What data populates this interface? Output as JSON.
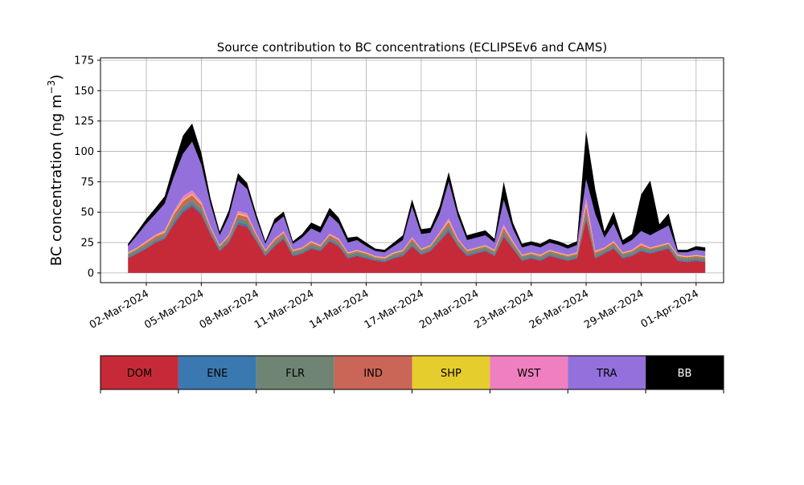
{
  "chart_data": {
    "type": "area",
    "stacked": true,
    "title": "Source contribution to BC concentrations (ECLIPSEv6 and CAMS)",
    "ylabel_prefix": "BC concentration (ng m",
    "ylabel_exp": "−3",
    "ylabel_suffix": ")",
    "ylim": [
      -8,
      177
    ],
    "yticks": [
      0,
      25,
      50,
      75,
      100,
      125,
      150,
      175
    ],
    "xlim": [
      "2024-02-28T12:00",
      "2024-04-02T12:00"
    ],
    "xticks": [
      "02-Mar-2024",
      "05-Mar-2024",
      "08-Mar-2024",
      "11-Mar-2024",
      "14-Mar-2024",
      "17-Mar-2024",
      "20-Mar-2024",
      "23-Mar-2024",
      "26-Mar-2024",
      "29-Mar-2024",
      "01-Apr-2024"
    ],
    "grid": true,
    "x": [
      "2024-03-01T00:00",
      "2024-03-01T12:00",
      "2024-03-02T00:00",
      "2024-03-02T12:00",
      "2024-03-03T00:00",
      "2024-03-03T12:00",
      "2024-03-04T00:00",
      "2024-03-04T12:00",
      "2024-03-05T00:00",
      "2024-03-05T12:00",
      "2024-03-06T00:00",
      "2024-03-06T12:00",
      "2024-03-07T00:00",
      "2024-03-07T12:00",
      "2024-03-08T00:00",
      "2024-03-08T12:00",
      "2024-03-09T00:00",
      "2024-03-09T12:00",
      "2024-03-10T00:00",
      "2024-03-10T12:00",
      "2024-03-11T00:00",
      "2024-03-11T12:00",
      "2024-03-12T00:00",
      "2024-03-12T12:00",
      "2024-03-13T00:00",
      "2024-03-13T12:00",
      "2024-03-14T00:00",
      "2024-03-14T12:00",
      "2024-03-15T00:00",
      "2024-03-15T12:00",
      "2024-03-16T00:00",
      "2024-03-16T12:00",
      "2024-03-17T00:00",
      "2024-03-17T12:00",
      "2024-03-18T00:00",
      "2024-03-18T12:00",
      "2024-03-19T00:00",
      "2024-03-19T12:00",
      "2024-03-20T00:00",
      "2024-03-20T12:00",
      "2024-03-21T00:00",
      "2024-03-21T12:00",
      "2024-03-22T00:00",
      "2024-03-22T12:00",
      "2024-03-23T00:00",
      "2024-03-23T12:00",
      "2024-03-24T00:00",
      "2024-03-24T12:00",
      "2024-03-25T00:00",
      "2024-03-25T12:00",
      "2024-03-26T00:00",
      "2024-03-26T12:00",
      "2024-03-27T00:00",
      "2024-03-27T12:00",
      "2024-03-28T00:00",
      "2024-03-28T12:00",
      "2024-03-29T00:00",
      "2024-03-29T12:00",
      "2024-03-30T00:00",
      "2024-03-30T12:00",
      "2024-03-31T00:00",
      "2024-03-31T12:00",
      "2024-04-01T00:00",
      "2024-04-01T12:00"
    ],
    "series": [
      {
        "name": "DOM",
        "color": "#c62a38",
        "values": [
          12,
          16,
          20,
          25,
          28,
          40,
          50,
          55,
          48,
          32,
          18,
          25,
          40,
          38,
          26,
          14,
          22,
          28,
          14,
          16,
          20,
          18,
          26,
          22,
          12,
          14,
          12,
          10,
          9,
          12,
          14,
          22,
          15,
          18,
          26,
          34,
          22,
          14,
          16,
          18,
          14,
          30,
          20,
          10,
          12,
          10,
          14,
          12,
          10,
          12,
          44,
          12,
          16,
          20,
          12,
          14,
          18,
          16,
          18,
          20,
          10,
          9,
          10,
          9
        ]
      },
      {
        "name": "ENE",
        "color": "#3a78b0",
        "values": [
          1,
          1,
          1,
          1,
          1,
          2,
          2,
          2,
          2,
          1,
          1,
          1,
          2,
          2,
          1,
          1,
          1,
          1,
          1,
          1,
          1,
          1,
          1,
          1,
          1,
          1,
          1,
          1,
          1,
          1,
          1,
          1,
          1,
          1,
          1,
          2,
          1,
          1,
          1,
          1,
          1,
          1,
          1,
          1,
          1,
          1,
          1,
          1,
          1,
          1,
          2,
          1,
          1,
          1,
          1,
          1,
          1,
          1,
          1,
          1,
          1,
          1,
          1,
          1
        ]
      },
      {
        "name": "FLR",
        "color": "#6f8472",
        "values": [
          2,
          2,
          2,
          2,
          2,
          3,
          3,
          3,
          3,
          2,
          2,
          2,
          3,
          3,
          2,
          2,
          2,
          2,
          2,
          2,
          2,
          2,
          2,
          2,
          2,
          2,
          2,
          1,
          1,
          2,
          2,
          3,
          2,
          2,
          3,
          3,
          2,
          2,
          2,
          2,
          2,
          3,
          2,
          2,
          2,
          2,
          2,
          2,
          2,
          2,
          4,
          2,
          2,
          2,
          2,
          2,
          2,
          2,
          2,
          2,
          2,
          2,
          2,
          2
        ]
      },
      {
        "name": "IND",
        "color": "#c96658",
        "values": [
          1,
          1,
          2,
          2,
          2,
          3,
          4,
          4,
          3,
          2,
          1,
          2,
          3,
          3,
          2,
          1,
          2,
          2,
          1,
          1,
          2,
          1,
          2,
          2,
          1,
          1,
          1,
          1,
          1,
          1,
          1,
          2,
          1,
          1,
          2,
          3,
          2,
          1,
          1,
          1,
          1,
          3,
          2,
          1,
          1,
          1,
          1,
          1,
          1,
          1,
          5,
          2,
          1,
          2,
          1,
          1,
          2,
          1,
          1,
          1,
          1,
          1,
          1,
          1
        ]
      },
      {
        "name": "SHP",
        "color": "#e5cd2e",
        "values": [
          0.5,
          0.5,
          0.5,
          0.5,
          1,
          1,
          1,
          1,
          1,
          0.5,
          0.5,
          0.5,
          1,
          1,
          0.5,
          0.5,
          0.5,
          0.5,
          0.5,
          0.5,
          0.5,
          0.5,
          0.5,
          0.5,
          0.5,
          0.5,
          0.5,
          0.5,
          0.5,
          0.5,
          0.5,
          0.5,
          0.5,
          0.5,
          0.5,
          1,
          0.5,
          0.5,
          0.5,
          0.5,
          0.5,
          1,
          0.5,
          0.5,
          0.5,
          0.5,
          0.5,
          0.5,
          0.5,
          0.5,
          2,
          0.5,
          0.5,
          0.5,
          0.5,
          0.5,
          0.5,
          0.5,
          0.5,
          0.5,
          0.5,
          0.5,
          0.5,
          0.5
        ]
      },
      {
        "name": "WST",
        "color": "#ef7fbf",
        "values": [
          0.5,
          0.5,
          1,
          1,
          1,
          2,
          3,
          3,
          2,
          1,
          0.5,
          1,
          2,
          2,
          1,
          0.5,
          1,
          1,
          0.5,
          0.5,
          1,
          0.5,
          1,
          1,
          0.5,
          0.5,
          0.5,
          0.5,
          0.5,
          0.5,
          0.5,
          1,
          0.5,
          0.5,
          1,
          2,
          1,
          0.5,
          0.5,
          0.5,
          0.5,
          2,
          1,
          0.5,
          0.5,
          0.5,
          0.5,
          0.5,
          0.5,
          0.5,
          5,
          1,
          0.5,
          1,
          0.5,
          0.5,
          1,
          0.5,
          0.5,
          0.5,
          0.5,
          0.5,
          0.5,
          0.5
        ]
      },
      {
        "name": "TRA",
        "color": "#9370db",
        "values": [
          5,
          10,
          14,
          17,
          22,
          28,
          35,
          40,
          30,
          18,
          8,
          15,
          25,
          20,
          12,
          5,
          12,
          12,
          5,
          8,
          10,
          10,
          15,
          12,
          8,
          8,
          5,
          4,
          4,
          5,
          8,
          25,
          12,
          10,
          15,
          30,
          18,
          8,
          8,
          8,
          6,
          20,
          10,
          6,
          6,
          6,
          6,
          6,
          5,
          6,
          15,
          30,
          8,
          14,
          6,
          8,
          10,
          10,
          12,
          14,
          2,
          3,
          4,
          4
        ]
      },
      {
        "name": "BB",
        "color": "#000000",
        "values": [
          2,
          3,
          4,
          5,
          6,
          10,
          15,
          15,
          10,
          5,
          3,
          5,
          6,
          5,
          4,
          2,
          4,
          4,
          2,
          3,
          5,
          5,
          6,
          5,
          4,
          3,
          3,
          2,
          2,
          3,
          4,
          6,
          4,
          4,
          6,
          8,
          5,
          4,
          4,
          4,
          3,
          15,
          5,
          3,
          3,
          3,
          3,
          3,
          3,
          3,
          40,
          20,
          5,
          10,
          4,
          5,
          30,
          45,
          5,
          10,
          2,
          2,
          3,
          3
        ]
      }
    ],
    "legend_position": "below"
  }
}
